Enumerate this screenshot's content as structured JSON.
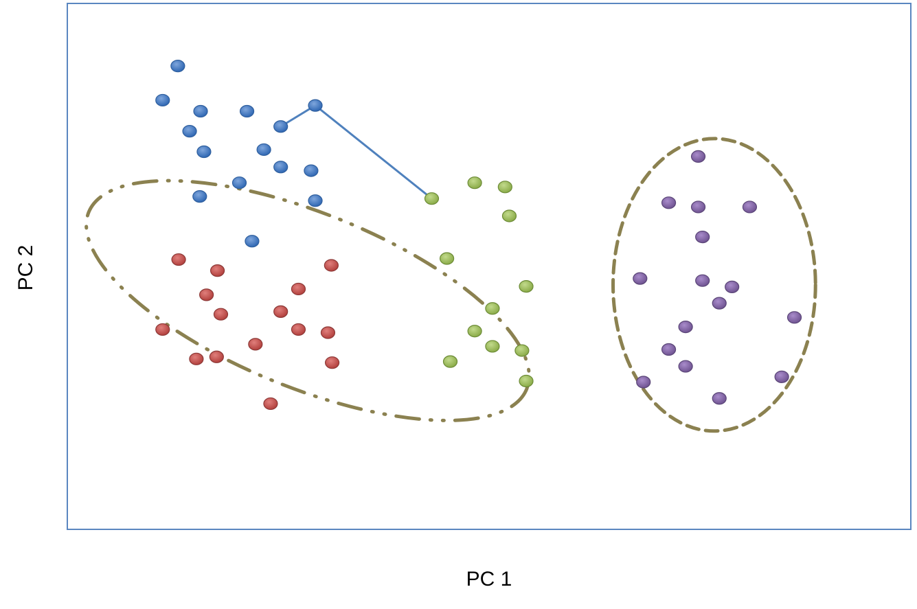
{
  "chart_data": {
    "type": "scatter",
    "title": "",
    "xlabel": "PC 1",
    "ylabel": "PC 2",
    "xlim": [
      0,
      100
    ],
    "ylim": [
      0,
      100
    ],
    "grid": false,
    "axis_ticks": false,
    "series": [
      {
        "color": "#3a75c4",
        "stroke": "#2f5f9e",
        "points": [
          {
            "x": 13.1,
            "y": 88.1
          },
          {
            "x": 11.3,
            "y": 81.6
          },
          {
            "x": 15.8,
            "y": 79.5
          },
          {
            "x": 21.3,
            "y": 79.5
          },
          {
            "x": 14.5,
            "y": 75.7
          },
          {
            "x": 16.2,
            "y": 71.8
          },
          {
            "x": 23.3,
            "y": 72.2
          },
          {
            "x": 25.3,
            "y": 68.9
          },
          {
            "x": 28.9,
            "y": 68.2
          },
          {
            "x": 20.4,
            "y": 65.9
          },
          {
            "x": 15.7,
            "y": 63.3
          },
          {
            "x": 29.4,
            "y": 62.5
          },
          {
            "x": 21.9,
            "y": 54.8
          },
          {
            "x": 25.3,
            "y": 76.6
          },
          {
            "x": 29.4,
            "y": 80.6
          }
        ]
      },
      {
        "color": "#c0504d",
        "stroke": "#8c3836",
        "points": [
          {
            "x": 13.2,
            "y": 51.3
          },
          {
            "x": 17.8,
            "y": 49.2
          },
          {
            "x": 31.3,
            "y": 50.2
          },
          {
            "x": 16.5,
            "y": 44.6
          },
          {
            "x": 27.4,
            "y": 45.7
          },
          {
            "x": 18.2,
            "y": 40.9
          },
          {
            "x": 25.3,
            "y": 41.4
          },
          {
            "x": 11.3,
            "y": 38.0
          },
          {
            "x": 27.4,
            "y": 38.0
          },
          {
            "x": 30.9,
            "y": 37.4
          },
          {
            "x": 22.3,
            "y": 35.2
          },
          {
            "x": 15.3,
            "y": 32.4
          },
          {
            "x": 17.7,
            "y": 32.8
          },
          {
            "x": 31.4,
            "y": 31.7
          },
          {
            "x": 24.1,
            "y": 23.9
          }
        ]
      },
      {
        "color": "#9bbb59",
        "stroke": "#6b8a35",
        "points": [
          {
            "x": 43.2,
            "y": 62.9
          },
          {
            "x": 48.3,
            "y": 65.9
          },
          {
            "x": 51.9,
            "y": 65.1
          },
          {
            "x": 52.4,
            "y": 59.6
          },
          {
            "x": 45.0,
            "y": 51.5
          },
          {
            "x": 54.4,
            "y": 46.2
          },
          {
            "x": 50.4,
            "y": 42.0
          },
          {
            "x": 48.3,
            "y": 37.7
          },
          {
            "x": 50.4,
            "y": 34.8
          },
          {
            "x": 53.9,
            "y": 34.0
          },
          {
            "x": 45.4,
            "y": 31.9
          },
          {
            "x": 54.4,
            "y": 28.2
          }
        ]
      },
      {
        "color": "#8064a2",
        "stroke": "#5a4577",
        "points": [
          {
            "x": 74.8,
            "y": 70.9
          },
          {
            "x": 71.3,
            "y": 62.1
          },
          {
            "x": 74.8,
            "y": 61.3
          },
          {
            "x": 80.9,
            "y": 61.3
          },
          {
            "x": 75.3,
            "y": 55.6
          },
          {
            "x": 67.9,
            "y": 47.7
          },
          {
            "x": 75.3,
            "y": 47.3
          },
          {
            "x": 78.8,
            "y": 46.1
          },
          {
            "x": 77.3,
            "y": 43.0
          },
          {
            "x": 86.2,
            "y": 40.3
          },
          {
            "x": 73.3,
            "y": 38.5
          },
          {
            "x": 71.3,
            "y": 34.2
          },
          {
            "x": 73.3,
            "y": 31.0
          },
          {
            "x": 68.3,
            "y": 28.0
          },
          {
            "x": 84.7,
            "y": 29.0
          },
          {
            "x": 77.3,
            "y": 24.9
          }
        ]
      }
    ],
    "annotations": [
      {
        "type": "polyline",
        "color": "#4f81bd",
        "points": [
          {
            "x": 25.3,
            "y": 76.6
          },
          {
            "x": 29.4,
            "y": 80.6
          },
          {
            "x": 43.2,
            "y": 62.9
          }
        ]
      },
      {
        "type": "ellipse",
        "style": "dash-dot-dot",
        "color": "#8b8150",
        "cx": 28.5,
        "cy": 43.5,
        "rx": 28.0,
        "ry": 16.6,
        "rotation": 22
      },
      {
        "type": "ellipse",
        "style": "dashed",
        "color": "#8b8150",
        "cx": 76.7,
        "cy": 46.5,
        "rx": 12.0,
        "ry": 27.8,
        "rotation": 0
      }
    ]
  }
}
